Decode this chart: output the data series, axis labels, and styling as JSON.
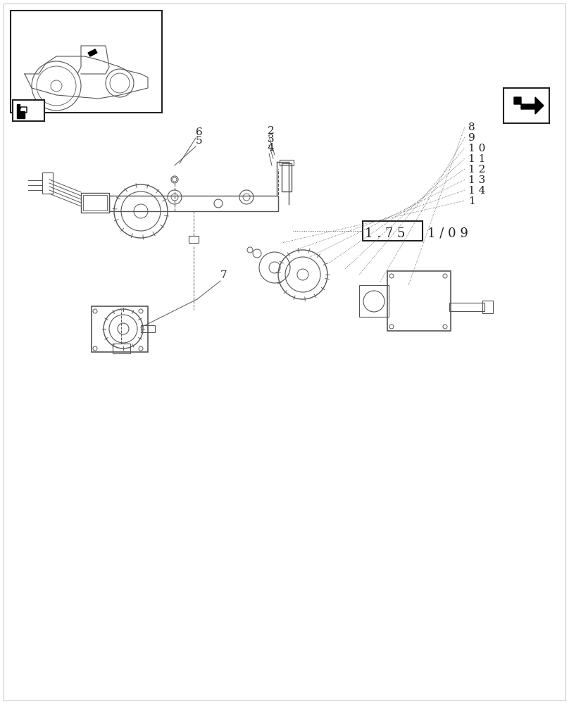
{
  "bg_color": "#ffffff",
  "line_color": "#555555",
  "dark_color": "#222222",
  "title_box_text": "1.75",
  "title_suffix": "1/09",
  "part_labels": [
    "6",
    "5",
    "2",
    "3",
    "4",
    "7",
    "8",
    "9",
    "10",
    "11",
    "12",
    "13",
    "14",
    "1"
  ],
  "fig_width": 8.08,
  "fig_height": 10.0,
  "dpi": 100
}
